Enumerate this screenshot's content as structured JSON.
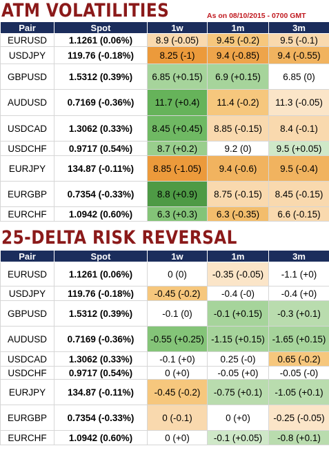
{
  "atm": {
    "title": "ATM VOLATILITIES",
    "as_of": "As on 08/10/2015 - 0700 GMT",
    "headers": [
      "Pair",
      "Spot",
      "1w",
      "1m",
      "3m"
    ],
    "rows": [
      {
        "pair": "EURUSD",
        "spot": "1.1261 (0.06%)",
        "h": 19,
        "cells": [
          {
            "t": "8.9 (-0.05)",
            "c": "#f9d9ae"
          },
          {
            "t": "9.45 (-0.2)",
            "c": "#f6c77d"
          },
          {
            "t": "9.5 (-0.1)",
            "c": "#f9d9ae"
          }
        ]
      },
      {
        "pair": "USDJPY",
        "spot": "119.76 (-0.18%)",
        "h": 25,
        "cells": [
          {
            "t": "8.25 (-1)",
            "c": "#ec9a3b"
          },
          {
            "t": "9.4 (-0.85)",
            "c": "#eea44a"
          },
          {
            "t": "9.4 (-0.55)",
            "c": "#f1b35f"
          }
        ]
      },
      {
        "pair": "GBPUSD",
        "spot": "1.5312 (0.39%)",
        "h": 37,
        "cells": [
          {
            "t": "6.85 (+0.15)",
            "c": "#a6d49b"
          },
          {
            "t": "6.9 (+0.15)",
            "c": "#a6d49b"
          },
          {
            "t": "6.85 (0)",
            "c": "#ffffff"
          }
        ]
      },
      {
        "pair": "AUDUSD",
        "spot": "0.7169 (-0.36%)",
        "h": 38,
        "cells": [
          {
            "t": "11.7 (+0.4)",
            "c": "#66b35a"
          },
          {
            "t": "11.4 (-0.2)",
            "c": "#f6c77d"
          },
          {
            "t": "11.3 (-0.05)",
            "c": "#fbe5c8"
          }
        ]
      },
      {
        "pair": "USDCAD",
        "spot": "1.3062 (0.33%)",
        "h": 37,
        "cells": [
          {
            "t": "8.45 (+0.45)",
            "c": "#6fb963"
          },
          {
            "t": "8.85 (-0.15)",
            "c": "#f9d9ae"
          },
          {
            "t": "8.4 (-0.1)",
            "c": "#f9d9ae"
          }
        ]
      },
      {
        "pair": "USDCHF",
        "spot": "0.9717 (0.54%)",
        "h": 21,
        "cells": [
          {
            "t": "8.7 (+0.2)",
            "c": "#99ce8d"
          },
          {
            "t": "9.2 (0)",
            "c": "#ffffff"
          },
          {
            "t": "9.5 (+0.05)",
            "c": "#cfe8c8"
          }
        ]
      },
      {
        "pair": "EURJPY",
        "spot": "134.87 (-0.11%)",
        "h": 37,
        "cells": [
          {
            "t": "8.85 (-1.05)",
            "c": "#ec9a3b"
          },
          {
            "t": "9.4 (-0.6)",
            "c": "#f1b35f"
          },
          {
            "t": "9.5 (-0.4)",
            "c": "#f1b35f"
          }
        ]
      },
      {
        "pair": "EURGBP",
        "spot": "0.7354 (-0.33%)",
        "h": 37,
        "cells": [
          {
            "t": "8.8 (+0.9)",
            "c": "#4e9a45"
          },
          {
            "t": "8.75 (-0.15)",
            "c": "#f9d9ae"
          },
          {
            "t": "8.45 (-0.15)",
            "c": "#f9d9ae"
          }
        ]
      },
      {
        "pair": "EURCHF",
        "spot": "1.0942 (0.60%)",
        "h": 21,
        "cells": [
          {
            "t": "6.3 (+0.3)",
            "c": "#84c478"
          },
          {
            "t": "6.3 (-0.35)",
            "c": "#f3bd6c"
          },
          {
            "t": "6.6 (-0.15)",
            "c": "#f9d9ae"
          }
        ]
      }
    ]
  },
  "rr": {
    "title": "25-DELTA RISK REVERSAL",
    "headers": [
      "Pair",
      "Spot",
      "1w",
      "1m",
      "3m"
    ],
    "rows": [
      {
        "pair": "EURUSD",
        "spot": "1.1261 (0.06%)",
        "h": 35,
        "cells": [
          {
            "t": "0 (0)",
            "c": "#ffffff"
          },
          {
            "t": "-0.35 (-0.05)",
            "c": "#fbe5c8"
          },
          {
            "t": "-1.1 (+0)",
            "c": "#ffffff"
          }
        ]
      },
      {
        "pair": "USDJPY",
        "spot": "119.76 (-0.18%)",
        "h": 21,
        "cells": [
          {
            "t": "-0.45 (-0.2)",
            "c": "#f6c77d"
          },
          {
            "t": "-0.4 (-0)",
            "c": "#ffffff"
          },
          {
            "t": "-0.4 (+0)",
            "c": "#ffffff"
          }
        ]
      },
      {
        "pair": "GBPUSD",
        "spot": "1.5312 (0.39%)",
        "h": 37,
        "cells": [
          {
            "t": "-0.1 (0)",
            "c": "#ffffff"
          },
          {
            "t": "-0.1 (+0.15)",
            "c": "#a6d49b"
          },
          {
            "t": "-0.3 (+0.1)",
            "c": "#b9dcae"
          }
        ]
      },
      {
        "pair": "AUDUSD",
        "spot": "0.7169 (-0.36%)",
        "h": 37,
        "cells": [
          {
            "t": "-0.55 (+0.25)",
            "c": "#84c478"
          },
          {
            "t": "-1.15 (+0.15)",
            "c": "#a6d49b"
          },
          {
            "t": "-1.65 (+0.15)",
            "c": "#a6d49b"
          }
        ]
      },
      {
        "pair": "USDCAD",
        "spot": "1.3062 (0.33%)",
        "h": 21,
        "cells": [
          {
            "t": "-0.1 (+0)",
            "c": "#ffffff"
          },
          {
            "t": "0.25 (-0)",
            "c": "#ffffff"
          },
          {
            "t": "0.65 (-0.2)",
            "c": "#f6c77d"
          }
        ]
      },
      {
        "pair": "USDCHF",
        "spot": "0.9717 (0.54%)",
        "h": 19,
        "cells": [
          {
            "t": "0 (+0)",
            "c": "#ffffff"
          },
          {
            "t": "-0.05 (+0)",
            "c": "#ffffff"
          },
          {
            "t": "-0.05 (-0)",
            "c": "#ffffff"
          }
        ]
      },
      {
        "pair": "EURJPY",
        "spot": "134.87 (-0.11%)",
        "h": 37,
        "cells": [
          {
            "t": "-0.45 (-0.2)",
            "c": "#f6c77d"
          },
          {
            "t": "-0.75 (+0.1)",
            "c": "#b9dcae"
          },
          {
            "t": "-1.05 (+0.1)",
            "c": "#b9dcae"
          }
        ]
      },
      {
        "pair": "EURGBP",
        "spot": "0.7354 (-0.33%)",
        "h": 37,
        "cells": [
          {
            "t": "0 (-0.1)",
            "c": "#f9d9ae"
          },
          {
            "t": "0 (+0)",
            "c": "#ffffff"
          },
          {
            "t": "-0.25 (-0.05)",
            "c": "#fbe5c8"
          }
        ]
      },
      {
        "pair": "EURCHF",
        "spot": "1.0942 (0.60%)",
        "h": 21,
        "cells": [
          {
            "t": "0 (+0)",
            "c": "#ffffff"
          },
          {
            "t": "-0.1 (+0.05)",
            "c": "#cfe8c8"
          },
          {
            "t": "-0.8 (+0.1)",
            "c": "#b9dcae"
          }
        ]
      }
    ]
  }
}
